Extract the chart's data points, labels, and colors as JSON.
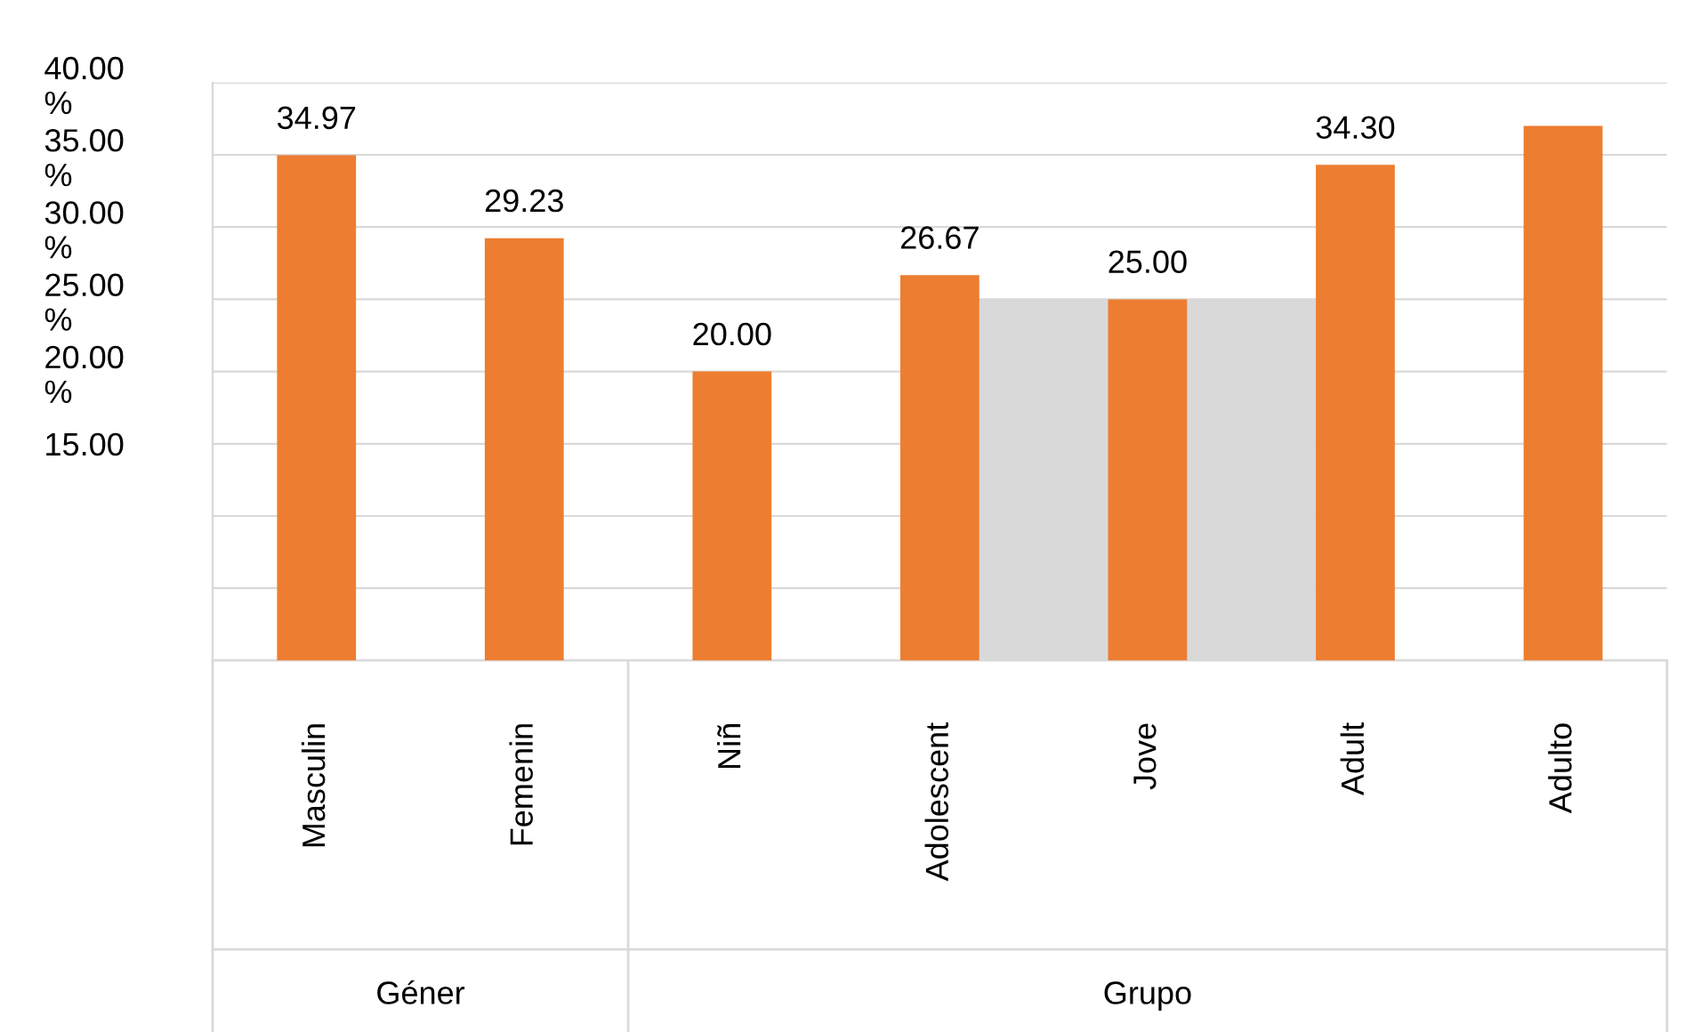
{
  "chart_data": {
    "type": "bar",
    "categories": [
      "Masculin",
      "Femenin",
      "Niñ",
      "Adolescent",
      "Jove",
      "Adult",
      "Adulto"
    ],
    "series": [
      {
        "color": "#d9d9d9",
        "values": [
          null,
          null,
          null,
          null,
          25,
          null,
          null
        ]
      },
      {
        "color": "#ed7d31",
        "values": [
          34.97,
          29.23,
          20.0,
          26.67,
          25.0,
          34.3,
          37.0
        ],
        "value_labels": [
          "34.97",
          "29.23",
          "20.00",
          "26.67",
          "25.00",
          "34.30",
          null
        ]
      }
    ],
    "ylim": [
      0,
      40
    ],
    "yticks": [
      {
        "value": 0,
        "label": null
      },
      {
        "value": 5,
        "label": null
      },
      {
        "value": 10,
        "label": null
      },
      {
        "value": 15,
        "label": "15.00"
      },
      {
        "value": 20,
        "label": "20.00\n%"
      },
      {
        "value": 25,
        "label": "25.00\n%"
      },
      {
        "value": 30,
        "label": "30.00\n%"
      },
      {
        "value": 35,
        "label": "35.00\n%"
      },
      {
        "value": 40,
        "label": "40.00\n%"
      }
    ],
    "grid": "y",
    "annotations": [
      "Géner",
      "Grupo"
    ]
  }
}
